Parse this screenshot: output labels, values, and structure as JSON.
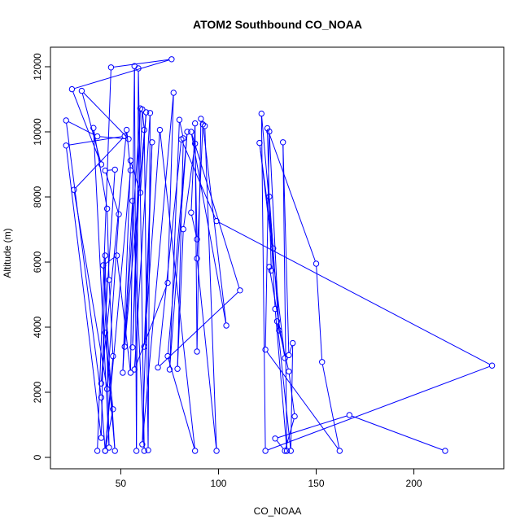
{
  "chart_data": {
    "type": "line",
    "title": "ATOM2 Southbound CO_NOAA",
    "xlabel": "CO_NOAA",
    "ylabel": "Altitude (m)",
    "xlim": [
      14,
      246
    ],
    "ylim": [
      -350,
      12600
    ],
    "xticks": [
      50,
      100,
      150,
      200
    ],
    "yticks": [
      0,
      2000,
      4000,
      6000,
      8000,
      10000,
      12000
    ],
    "grid": false,
    "legend": "none",
    "colors": {
      "series": "#0000ff",
      "axes": "#000000",
      "background": "#ffffff"
    },
    "series": [
      {
        "points": [
          [
            38,
            200
          ],
          [
            45,
            11980
          ],
          [
            76,
            12230
          ],
          [
            25,
            11310
          ],
          [
            40,
            9000
          ],
          [
            30,
            11260
          ],
          [
            54,
            9780
          ],
          [
            38,
            9860
          ],
          [
            22,
            10350
          ],
          [
            40,
            1840
          ],
          [
            42,
            200
          ],
          [
            46,
            3110
          ],
          [
            44,
            5450
          ],
          [
            43,
            7640
          ],
          [
            36,
            10120
          ],
          [
            44,
            300
          ],
          [
            42,
            6200
          ],
          [
            40,
            600
          ],
          [
            22,
            9580
          ],
          [
            52,
            9870
          ],
          [
            26,
            8220
          ],
          [
            43,
            2100
          ],
          [
            49,
            7470
          ],
          [
            42,
            8810
          ],
          [
            47,
            8840
          ],
          [
            40,
            2270
          ],
          [
            53,
            10060
          ],
          [
            55,
            8820
          ],
          [
            42,
            200
          ],
          [
            46,
            1480
          ],
          [
            42,
            3830
          ],
          [
            47,
            200
          ],
          [
            41,
            5900
          ],
          [
            48,
            6200
          ],
          [
            55,
            2600
          ],
          [
            57,
            12020
          ],
          [
            58,
            200
          ],
          [
            59,
            11950
          ],
          [
            62,
            200
          ],
          [
            56,
            7880
          ],
          [
            51,
            2600
          ],
          [
            55,
            9120
          ],
          [
            60,
            8130
          ],
          [
            63,
            10600
          ],
          [
            52,
            3400
          ],
          [
            60,
            10720
          ],
          [
            56,
            3380
          ],
          [
            61,
            10690
          ],
          [
            62,
            10060
          ],
          [
            64,
            220
          ],
          [
            65,
            10580
          ],
          [
            57,
            2700
          ],
          [
            74,
            5360
          ],
          [
            77,
            11200
          ],
          [
            61,
            400
          ],
          [
            66,
            9680
          ],
          [
            62,
            3400
          ],
          [
            70,
            10060
          ],
          [
            88,
            200
          ],
          [
            74,
            3110
          ],
          [
            84,
            10000
          ],
          [
            75,
            2700
          ],
          [
            80,
            10370
          ],
          [
            82,
            9800
          ],
          [
            79,
            2720
          ],
          [
            82,
            7010
          ],
          [
            88,
            9640
          ],
          [
            89,
            6700
          ],
          [
            86,
            7520
          ],
          [
            88,
            10260
          ],
          [
            89,
            3250
          ],
          [
            91,
            10400
          ],
          [
            93,
            10180
          ],
          [
            99,
            200
          ],
          [
            89,
            6110
          ],
          [
            92,
            10230
          ],
          [
            104,
            4050
          ],
          [
            86,
            10000
          ],
          [
            111,
            5130
          ],
          [
            69,
            2760
          ],
          [
            81,
            9770
          ],
          [
            99,
            7260
          ],
          [
            240,
            2820
          ],
          [
            124,
            200
          ],
          [
            122,
            10560
          ],
          [
            128,
            6420
          ],
          [
            121,
            9660
          ],
          [
            134,
            3050
          ],
          [
            126,
            5850
          ],
          [
            127,
            5740
          ],
          [
            125,
            10110
          ],
          [
            150,
            5950
          ],
          [
            153,
            2930
          ],
          [
            162,
            200
          ],
          [
            124,
            3310
          ],
          [
            126,
            10010
          ],
          [
            131,
            3900
          ],
          [
            126,
            8010
          ],
          [
            129,
            4560
          ],
          [
            135,
            200
          ],
          [
            133,
            9680
          ],
          [
            136,
            3140
          ],
          [
            138,
            3510
          ],
          [
            137,
            200
          ],
          [
            130,
            4180
          ],
          [
            136,
            2640
          ],
          [
            139,
            1260
          ],
          [
            134,
            200
          ],
          [
            129,
            580
          ],
          [
            167,
            1300
          ],
          [
            216,
            200
          ]
        ]
      }
    ]
  }
}
